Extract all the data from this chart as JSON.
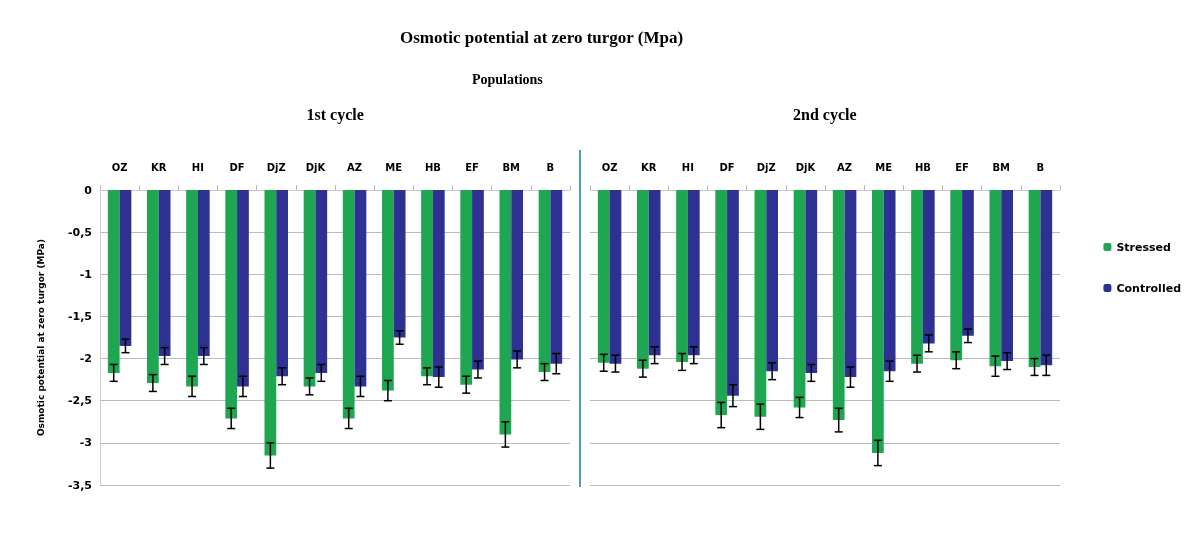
{
  "chart_data": [
    {
      "type": "bar",
      "title": "Osmotic potential at zero turgor (Mpa)",
      "subtitle": "Populations",
      "ylabel": "Osmotic potential at zero turgor (MPa)",
      "annotations": [
        "1st cycle"
      ],
      "categories": [
        "OZ",
        "KR",
        "HI",
        "DF",
        "DjZ",
        "DjK",
        "AZ",
        "ME",
        "HB",
        "EF",
        "BM",
        "B"
      ],
      "series": [
        {
          "color": "#1ea650",
          "values": [
            -2.17,
            -2.29,
            -2.33,
            -2.71,
            -3.15,
            -2.33,
            -2.71,
            -2.38,
            -2.21,
            -2.31,
            -2.9,
            -2.16
          ],
          "errors": [
            0.1,
            0.1,
            0.12,
            0.12,
            0.15,
            0.1,
            0.12,
            0.12,
            0.1,
            0.1,
            0.15,
            0.1
          ]
        },
        {
          "color": "#2e3192",
          "values": [
            -1.85,
            -1.97,
            -1.97,
            -2.33,
            -2.21,
            -2.17,
            -2.33,
            -1.75,
            -2.22,
            -2.13,
            -2.01,
            -2.06
          ],
          "errors": [
            0.08,
            0.1,
            0.1,
            0.12,
            0.1,
            0.1,
            0.12,
            0.08,
            0.12,
            0.1,
            0.1,
            0.12
          ]
        }
      ],
      "ylim": [
        -3.5,
        0
      ],
      "yticks": [
        0,
        {
          "value": -0.5,
          "label": "-0,5"
        },
        -1,
        {
          "value": -1.5,
          "label": "-1,5"
        },
        -2,
        {
          "value": -2.5,
          "label": "-2,5"
        },
        -3,
        {
          "value": -3.5,
          "label": "-3,5"
        }
      ],
      "grid": "y"
    },
    {
      "type": "bar",
      "title": "2nd cycle",
      "categories": [
        "OZ",
        "KR",
        "HI",
        "DF",
        "DjZ",
        "DjK",
        "AZ",
        "ME",
        "HB",
        "EF",
        "BM",
        "B"
      ],
      "series": [
        {
          "name": "Stressed",
          "color": "#1ea650",
          "values": [
            -2.05,
            -2.12,
            -2.04,
            -2.67,
            -2.69,
            -2.58,
            -2.73,
            -3.12,
            -2.06,
            -2.02,
            -2.09,
            -2.1
          ],
          "errors": [
            0.1,
            0.1,
            0.1,
            0.15,
            0.15,
            0.12,
            0.14,
            0.15,
            0.1,
            0.1,
            0.12,
            0.1
          ]
        },
        {
          "name": "Controlled",
          "color": "#2e3192",
          "values": [
            -2.06,
            -1.96,
            -1.96,
            -2.44,
            -2.15,
            -2.17,
            -2.22,
            -2.15,
            -1.82,
            -1.73,
            -2.03,
            -2.08
          ],
          "errors": [
            0.1,
            0.1,
            0.1,
            0.13,
            0.1,
            0.1,
            0.12,
            0.12,
            0.1,
            0.08,
            0.1,
            0.12
          ]
        }
      ],
      "ylim": [
        -3.5,
        0
      ],
      "yticks": [
        0,
        -0.5,
        -1,
        -1.5,
        -2,
        -2.5,
        -3,
        -3.5
      ],
      "tick_labels": "x",
      "grid": "y",
      "legend": "right"
    }
  ]
}
